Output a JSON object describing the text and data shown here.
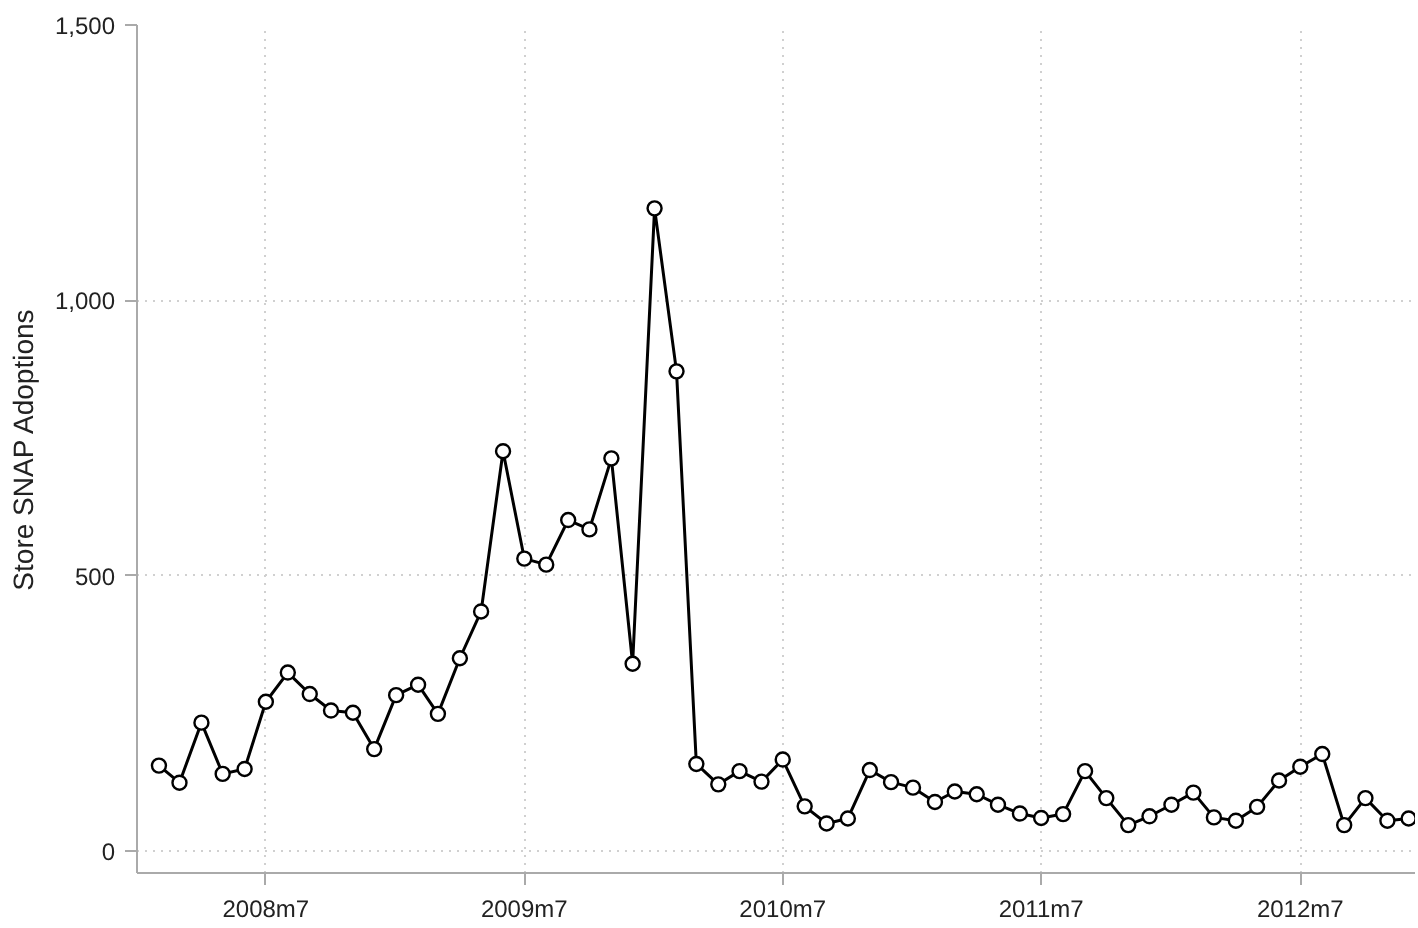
{
  "chart_data": {
    "type": "line",
    "ylabel": "Store SNAP Adoptions",
    "x": [
      "2008-02",
      "2008-03",
      "2008-04",
      "2008-05",
      "2008-06",
      "2008-07",
      "2008-08",
      "2008-09",
      "2008-10",
      "2008-11",
      "2008-12",
      "2009-01",
      "2009-02",
      "2009-03",
      "2009-04",
      "2009-05",
      "2009-06",
      "2009-07",
      "2009-08",
      "2009-09",
      "2009-10",
      "2009-11",
      "2009-12",
      "2010-01",
      "2010-02",
      "2010-03",
      "2010-04",
      "2010-05",
      "2010-06",
      "2010-07",
      "2010-08",
      "2010-09",
      "2010-10",
      "2010-11",
      "2010-12",
      "2011-01",
      "2011-02",
      "2011-03",
      "2011-04",
      "2011-05",
      "2011-06",
      "2011-07",
      "2011-08",
      "2011-09",
      "2011-10",
      "2011-11",
      "2011-12",
      "2012-01",
      "2012-02",
      "2012-03",
      "2012-04",
      "2012-05",
      "2012-06",
      "2012-07",
      "2012-08",
      "2012-09",
      "2012-10",
      "2012-11",
      "2012-12"
    ],
    "series": [
      {
        "color": "#000000",
        "values": [
          155,
          124,
          233,
          140,
          149,
          271,
          324,
          285,
          255,
          251,
          185,
          283,
          302,
          249,
          350,
          435,
          726,
          531,
          520,
          601,
          584,
          713,
          340,
          1167,
          871,
          158,
          121,
          145,
          126,
          166,
          81,
          50,
          59,
          147,
          125,
          115,
          89,
          108,
          103,
          84,
          68,
          60,
          67,
          145,
          96,
          47,
          63,
          84,
          106,
          61,
          55,
          80,
          128,
          153,
          176,
          47,
          96,
          55,
          59
        ]
      }
    ],
    "xlim": [
      "2008-01",
      "2012-12-10"
    ],
    "ylim": [
      -40,
      1500
    ],
    "xticks": [
      {
        "value": "2008-07",
        "label": "2008m7"
      },
      {
        "value": "2009-07",
        "label": "2009m7"
      },
      {
        "value": "2010-07",
        "label": "2010m7"
      },
      {
        "value": "2011-07",
        "label": "2011m7"
      },
      {
        "value": "2012-07",
        "label": "2012m7"
      }
    ],
    "yticks": [
      {
        "value": 0,
        "label": "0"
      },
      {
        "value": 500,
        "label": "500"
      },
      {
        "value": 1000,
        "label": "1,000"
      },
      {
        "value": 1500,
        "label": "1,500"
      }
    ],
    "grid": true,
    "marker": "circle",
    "line_style": "solid"
  }
}
